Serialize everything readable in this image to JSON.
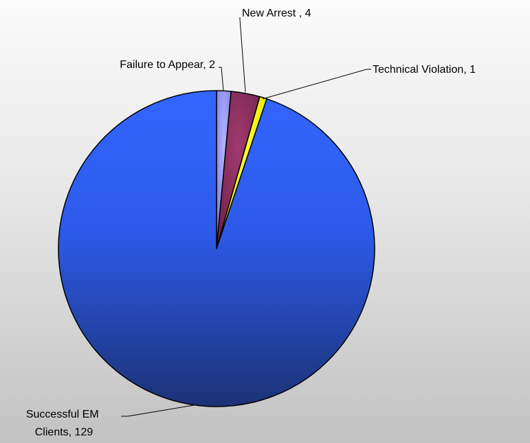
{
  "chart_data": {
    "type": "pie",
    "title": "",
    "slices": [
      {
        "label": "Failure to Appear, 2",
        "name": "Failure to Appear",
        "value": 2,
        "color": "#9999ff"
      },
      {
        "label": "New Arrest , 4",
        "name": "New Arrest",
        "value": 4,
        "color": "#993366"
      },
      {
        "label": "Technical Violation, 1",
        "name": "Technical Violation",
        "value": 1,
        "color": "#ffff00"
      },
      {
        "label_lines": [
          "Successful EM",
          "Clients, 129"
        ],
        "name": "Successful EM Clients",
        "value": 129,
        "color": "#3366ff"
      }
    ],
    "legend": "none",
    "data_labels": "outside with leader lines"
  }
}
